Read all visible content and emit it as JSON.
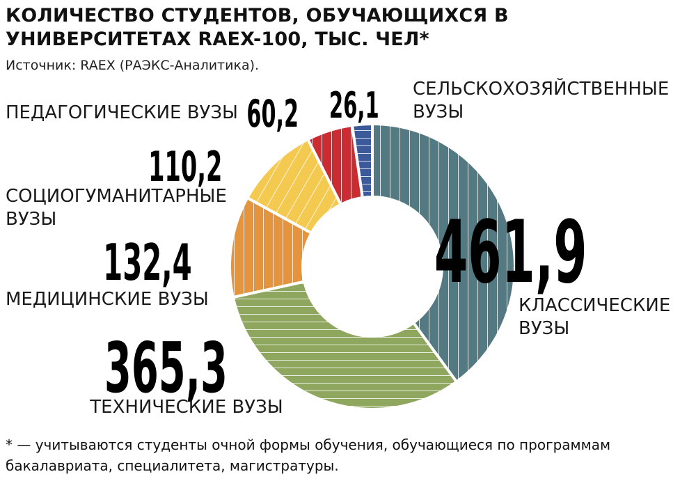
{
  "title": "КОЛИЧЕСТВО СТУДЕНТОВ, ОБУЧАЮЩИХСЯ В УНИВЕРСИТЕТАХ RAEX-100, ТЫС. ЧЕЛ*",
  "source": "Источник: RAEX (РАЭКС-Аналитика).",
  "footnote": "* — учитываются студенты очной формы обучения, обучающиеся по программам бакалавриата, специалитета, магистратуры.",
  "chart_data": {
    "type": "pie",
    "donut": true,
    "title": "КОЛИЧЕСТВО СТУДЕНТОВ, ОБУЧАЮЩИХСЯ В УНИВЕРСИТЕТАХ RAEX-100, ТЫС. ЧЕЛ*",
    "slices": [
      {
        "label": [
          "КЛАССИЧЕСКИЕ",
          "ВУЗЫ"
        ],
        "value": 461.9,
        "value_text": "461,9",
        "color": "#537a82",
        "pattern": "vertical"
      },
      {
        "label": [
          "ТЕХНИЧЕСКИЕ ВУЗЫ"
        ],
        "value": 365.3,
        "value_text": "365,3",
        "color": "#8fa65f",
        "pattern": "horizontal"
      },
      {
        "label": [
          "МЕДИЦИНСКИЕ ВУЗЫ"
        ],
        "value": 132.4,
        "value_text": "132,4",
        "color": "#e3943c",
        "pattern": "vertical"
      },
      {
        "label": [
          "СОЦИОГУМАНИТАРНЫЕ",
          "ВУЗЫ"
        ],
        "value": 110.2,
        "value_text": "110,2",
        "color": "#f4c94f",
        "pattern": "diagonal"
      },
      {
        "label": [
          "ПЕДАГОГИЧЕСКИЕ ВУЗЫ"
        ],
        "value": 60.2,
        "value_text": "60,2",
        "color": "#cc2b31",
        "pattern": "vertical"
      },
      {
        "label": [
          "СЕЛЬСКОХОЗЯЙСТВЕННЫЕ",
          "ВУЗЫ"
        ],
        "value": 26.1,
        "value_text": "26,1",
        "color": "#3c5a9a",
        "pattern": "horizontal"
      }
    ]
  }
}
